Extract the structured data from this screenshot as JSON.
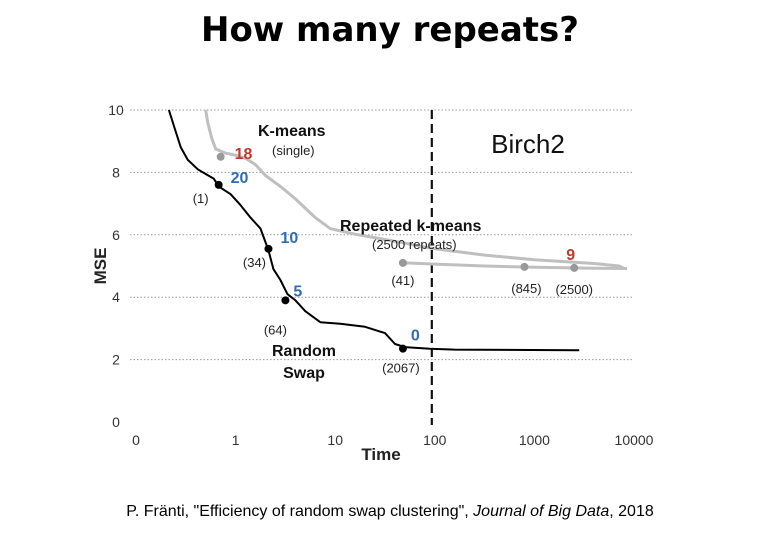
{
  "title": "How many repeats?",
  "citation": {
    "prefix": "P. Fränti, \"Efficiency of random swap clustering\", ",
    "journal": "Journal of Big Data",
    "suffix": ", 2018"
  },
  "chart_data": {
    "type": "line",
    "title": "",
    "dataset_label": "Birch2",
    "xlabel": "Time",
    "ylabel": "MSE",
    "x_scale": "log",
    "x_ticks": [
      "0",
      "1",
      "10",
      "100",
      "1000",
      "10000"
    ],
    "y_ticks": [
      "0",
      "2",
      "4",
      "6",
      "8",
      "10"
    ],
    "ylim": [
      0,
      10
    ],
    "grid": "horizontal-dotted",
    "vertical_marker": {
      "x_tick_index": 2.97,
      "style": "dashed"
    },
    "series": [
      {
        "name": "K-means",
        "subtitle": "(single)",
        "color": "#bfbfbf",
        "points": [
          [
            0.7,
            10
          ],
          [
            0.72,
            9.6
          ],
          [
            0.76,
            9.1
          ],
          [
            0.8,
            8.75
          ],
          [
            0.9,
            8.62
          ],
          [
            1.0,
            8.55
          ],
          [
            1.1,
            8.45
          ],
          [
            1.2,
            8.25
          ],
          [
            1.3,
            7.9
          ],
          [
            1.45,
            7.55
          ],
          [
            1.6,
            7.15
          ],
          [
            1.8,
            6.55
          ],
          [
            1.95,
            6.2
          ],
          [
            2.2,
            6.02
          ],
          [
            2.5,
            5.85
          ],
          [
            3.0,
            5.55
          ],
          [
            3.5,
            5.35
          ],
          [
            4.0,
            5.2
          ],
          [
            4.6,
            5.08
          ],
          [
            4.85,
            5.0
          ],
          [
            4.9,
            4.92
          ]
        ]
      },
      {
        "name": "Repeated k-means",
        "subtitle": "(2500 repeats)",
        "color": "#bfbfbf",
        "points": [
          [
            2.7,
            5.1
          ],
          [
            3.0,
            5.06
          ],
          [
            3.5,
            5.0
          ],
          [
            4.0,
            4.96
          ],
          [
            4.6,
            4.93
          ],
          [
            4.93,
            4.92
          ]
        ]
      },
      {
        "name": "Random Swap",
        "color": "#000000",
        "points": [
          [
            0.33,
            10
          ],
          [
            0.38,
            9.5
          ],
          [
            0.45,
            8.8
          ],
          [
            0.52,
            8.4
          ],
          [
            0.62,
            8.1
          ],
          [
            0.7,
            7.95
          ],
          [
            0.78,
            7.8
          ],
          [
            0.83,
            7.55
          ],
          [
            0.95,
            7.3
          ],
          [
            1.05,
            6.95
          ],
          [
            1.15,
            6.55
          ],
          [
            1.25,
            6.2
          ],
          [
            1.33,
            5.5
          ],
          [
            1.38,
            4.9
          ],
          [
            1.45,
            4.55
          ],
          [
            1.52,
            4.1
          ],
          [
            1.6,
            3.9
          ],
          [
            1.7,
            3.55
          ],
          [
            1.85,
            3.2
          ],
          [
            2.05,
            3.15
          ],
          [
            2.3,
            3.05
          ],
          [
            2.5,
            2.85
          ],
          [
            2.6,
            2.5
          ],
          [
            2.7,
            2.4
          ],
          [
            2.95,
            2.35
          ],
          [
            3.2,
            2.32
          ],
          [
            4.45,
            2.3
          ]
        ]
      }
    ],
    "markers": [
      {
        "series": "K-means",
        "x": 0.85,
        "y": 8.5,
        "label": "18",
        "label_color": "#c0392b",
        "time_label": "",
        "dot_color": "#999999"
      },
      {
        "series": "Random Swap",
        "x": 0.83,
        "y": 7.6,
        "label": "20",
        "label_color": "#2e6db4",
        "time_label": "(1)",
        "dot_color": "#000000"
      },
      {
        "series": "Random Swap",
        "x": 1.33,
        "y": 5.55,
        "label": "10",
        "label_color": "#2e6db4",
        "time_label": "(34)",
        "dot_color": "#000000"
      },
      {
        "series": "Random Swap",
        "x": 1.5,
        "y": 3.9,
        "label": "5",
        "label_color": "#2e6db4",
        "time_label": "(64)",
        "dot_color": "#000000"
      },
      {
        "series": "Random Swap",
        "x": 2.68,
        "y": 2.35,
        "label": "0",
        "label_color": "#2e6db4",
        "time_label": "(2067)",
        "dot_color": "#000000"
      },
      {
        "series": "Repeated k-means",
        "x": 2.68,
        "y": 5.1,
        "label": "",
        "label_color": "",
        "time_label": "(41)",
        "dot_color": "#999999"
      },
      {
        "series": "Repeated k-means",
        "x": 3.9,
        "y": 4.97,
        "label": "",
        "label_color": "",
        "time_label": "(845)",
        "dot_color": "#999999"
      },
      {
        "series": "Repeated k-means",
        "x": 4.4,
        "y": 4.94,
        "label": "9",
        "label_color": "#c0392b",
        "time_label": "(2500)",
        "dot_color": "#999999"
      }
    ]
  }
}
